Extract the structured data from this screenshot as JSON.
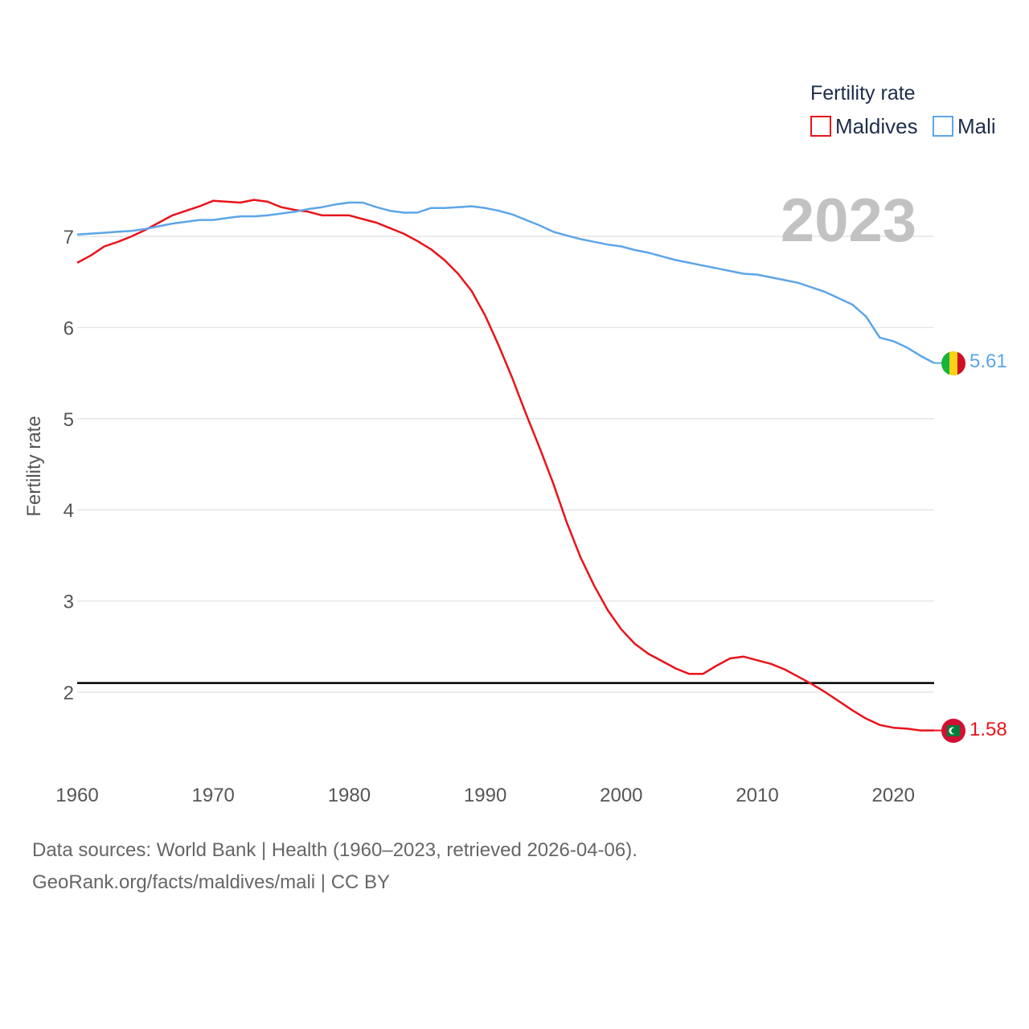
{
  "chart_data": {
    "type": "line",
    "legend_title": "Fertility rate",
    "ylabel": "Fertility rate",
    "xlabel": "",
    "year_label": "2023",
    "xlim": [
      1960,
      2023
    ],
    "ylim": [
      1.0,
      7.7
    ],
    "x_ticks": [
      1960,
      1970,
      1980,
      1990,
      2000,
      2010,
      2020
    ],
    "y_ticks": [
      2,
      3,
      4,
      5,
      6,
      7
    ],
    "reference_line": 2.1,
    "x": [
      1960,
      1961,
      1962,
      1963,
      1964,
      1965,
      1966,
      1967,
      1968,
      1969,
      1970,
      1971,
      1972,
      1973,
      1974,
      1975,
      1976,
      1977,
      1978,
      1979,
      1980,
      1981,
      1982,
      1983,
      1984,
      1985,
      1986,
      1987,
      1988,
      1989,
      1990,
      1991,
      1992,
      1993,
      1994,
      1995,
      1996,
      1997,
      1998,
      1999,
      2000,
      2001,
      2002,
      2003,
      2004,
      2005,
      2006,
      2007,
      2008,
      2009,
      2010,
      2011,
      2012,
      2013,
      2014,
      2015,
      2016,
      2017,
      2018,
      2019,
      2020,
      2021,
      2022,
      2023
    ],
    "series": [
      {
        "name": "Maldives",
        "color": "#e8131b",
        "end_label": "1.58",
        "flag": "maldives-flag",
        "values": [
          6.71,
          6.79,
          6.89,
          6.94,
          7.0,
          7.07,
          7.15,
          7.23,
          7.28,
          7.33,
          7.39,
          7.38,
          7.37,
          7.4,
          7.38,
          7.32,
          7.29,
          7.27,
          7.23,
          7.23,
          7.23,
          7.19,
          7.15,
          7.09,
          7.03,
          6.95,
          6.86,
          6.74,
          6.59,
          6.4,
          6.13,
          5.8,
          5.44,
          5.05,
          4.68,
          4.29,
          3.86,
          3.48,
          3.17,
          2.9,
          2.69,
          2.53,
          2.42,
          2.34,
          2.26,
          2.2,
          2.2,
          2.29,
          2.37,
          2.39,
          2.35,
          2.31,
          2.25,
          2.17,
          2.09,
          2.0,
          1.9,
          1.8,
          1.71,
          1.64,
          1.61,
          1.6,
          1.58,
          1.58
        ]
      },
      {
        "name": "Mali",
        "color": "#5da5e8",
        "end_label": "5.61",
        "flag": "mali-flag",
        "values": [
          7.02,
          7.03,
          7.04,
          7.05,
          7.06,
          7.08,
          7.11,
          7.14,
          7.16,
          7.18,
          7.18,
          7.2,
          7.22,
          7.22,
          7.23,
          7.25,
          7.27,
          7.3,
          7.32,
          7.35,
          7.37,
          7.37,
          7.32,
          7.28,
          7.26,
          7.26,
          7.31,
          7.31,
          7.32,
          7.33,
          7.31,
          7.28,
          7.24,
          7.18,
          7.12,
          7.05,
          7.01,
          6.97,
          6.94,
          6.91,
          6.89,
          6.85,
          6.82,
          6.78,
          6.74,
          6.71,
          6.68,
          6.65,
          6.62,
          6.59,
          6.58,
          6.55,
          6.52,
          6.49,
          6.44,
          6.39,
          6.32,
          6.25,
          6.12,
          5.89,
          5.85,
          5.78,
          5.69,
          5.61
        ]
      }
    ]
  },
  "source": {
    "line1": "Data sources: World Bank | Health (1960–2023, retrieved 2026-04-06).",
    "line2": "GeoRank.org/facts/maldives/mali | CC BY"
  }
}
